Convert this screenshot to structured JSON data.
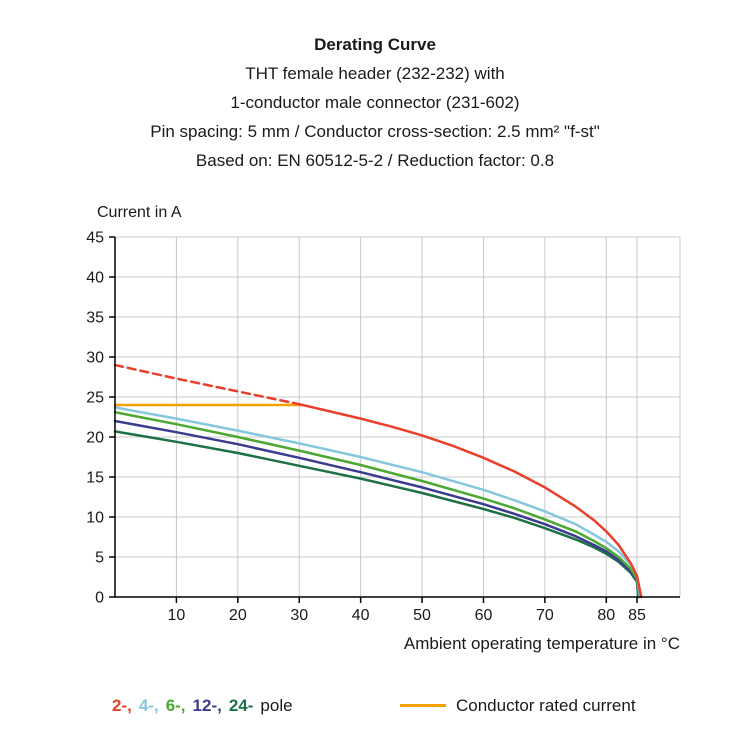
{
  "header": {
    "title": "Derating Curve",
    "lines": [
      "THT female header (232-232) with",
      "1-conductor male connector (231-602)",
      "Pin spacing: 5 mm / Conductor cross-section: 2.5 mm² \"f-st\"",
      "Based on: EN 60512-5-2 / Reduction factor: 0.8"
    ]
  },
  "legend": {
    "pole_items": [
      {
        "label": "2-,",
        "color": "#e8402c"
      },
      {
        "label": "4-,",
        "color": "#85c7dc"
      },
      {
        "label": "6-,",
        "color": "#4ca832"
      },
      {
        "label": "12-,",
        "color": "#3b3b8f"
      },
      {
        "label": "24-",
        "color": "#1e7145"
      }
    ],
    "pole_suffix": "pole",
    "rated_label": "Conductor rated current",
    "rated_color": "#f7a200"
  },
  "chart_data": {
    "type": "line",
    "title": "Derating Curve",
    "xlabel": "Ambient operating temperature in °C",
    "ylabel": "Current in A",
    "xlim": [
      0,
      92
    ],
    "ylim": [
      0,
      45
    ],
    "xticks": [
      10,
      20,
      30,
      40,
      50,
      60,
      70,
      80,
      85
    ],
    "yticks": [
      0,
      5,
      10,
      15,
      20,
      25,
      30,
      35,
      40,
      45
    ],
    "grid": true,
    "grid_color": "#c8c8c8",
    "axis_color": "#000000",
    "series": [
      {
        "name": "24-pole",
        "color": "#1e7145",
        "dash": null,
        "width": 2.5,
        "points": [
          [
            0,
            20.7
          ],
          [
            10,
            19.4
          ],
          [
            20,
            18.0
          ],
          [
            30,
            16.4
          ],
          [
            40,
            14.8
          ],
          [
            50,
            13.0
          ],
          [
            60,
            11.0
          ],
          [
            65,
            9.9
          ],
          [
            70,
            8.6
          ],
          [
            75,
            7.2
          ],
          [
            78,
            6.2
          ],
          [
            80,
            5.4
          ],
          [
            82,
            4.4
          ],
          [
            84,
            3.0
          ],
          [
            85,
            1.9
          ],
          [
            85.2,
            0
          ]
        ]
      },
      {
        "name": "12-pole",
        "color": "#3b3b8f",
        "dash": null,
        "width": 2.5,
        "points": [
          [
            0,
            22.0
          ],
          [
            10,
            20.6
          ],
          [
            20,
            19.1
          ],
          [
            30,
            17.4
          ],
          [
            40,
            15.6
          ],
          [
            50,
            13.7
          ],
          [
            60,
            11.6
          ],
          [
            65,
            10.4
          ],
          [
            70,
            9.1
          ],
          [
            75,
            7.6
          ],
          [
            78,
            6.5
          ],
          [
            80,
            5.7
          ],
          [
            82,
            4.6
          ],
          [
            84,
            3.2
          ],
          [
            85,
            2.0
          ],
          [
            85.3,
            0
          ]
        ]
      },
      {
        "name": "6-pole",
        "color": "#4ca832",
        "dash": null,
        "width": 2.5,
        "points": [
          [
            0,
            23.1
          ],
          [
            10,
            21.6
          ],
          [
            20,
            20.0
          ],
          [
            30,
            18.3
          ],
          [
            40,
            16.5
          ],
          [
            50,
            14.5
          ],
          [
            60,
            12.3
          ],
          [
            65,
            11.1
          ],
          [
            70,
            9.7
          ],
          [
            75,
            8.2
          ],
          [
            78,
            7.0
          ],
          [
            80,
            6.1
          ],
          [
            82,
            5.0
          ],
          [
            84,
            3.5
          ],
          [
            85,
            2.2
          ],
          [
            85.4,
            0
          ]
        ]
      },
      {
        "name": "4-pole",
        "color": "#85c7dc",
        "dash": null,
        "width": 2.5,
        "points": [
          [
            0,
            23.7
          ],
          [
            10,
            22.3
          ],
          [
            20,
            20.8
          ],
          [
            30,
            19.2
          ],
          [
            40,
            17.5
          ],
          [
            50,
            15.6
          ],
          [
            60,
            13.4
          ],
          [
            65,
            12.1
          ],
          [
            70,
            10.7
          ],
          [
            75,
            9.1
          ],
          [
            78,
            7.8
          ],
          [
            80,
            6.9
          ],
          [
            82,
            5.7
          ],
          [
            84,
            4.0
          ],
          [
            85,
            2.6
          ],
          [
            85.5,
            0
          ]
        ]
      },
      {
        "name": "conductor-rated-current",
        "color": "#f7a200",
        "dash": null,
        "width": 2.5,
        "points": [
          [
            0,
            24
          ],
          [
            30.5,
            24
          ]
        ]
      },
      {
        "name": "2-pole-dashed",
        "color": "#e8402c",
        "dash": "8 5",
        "width": 2.5,
        "points": [
          [
            0,
            29.0
          ],
          [
            10,
            27.3
          ],
          [
            20,
            25.7
          ],
          [
            30,
            24.1
          ]
        ]
      },
      {
        "name": "2-pole",
        "color": "#e8402c",
        "dash": null,
        "width": 2.5,
        "points": [
          [
            30,
            24.1
          ],
          [
            35,
            23.2
          ],
          [
            40,
            22.3
          ],
          [
            45,
            21.3
          ],
          [
            50,
            20.2
          ],
          [
            55,
            18.9
          ],
          [
            60,
            17.4
          ],
          [
            65,
            15.7
          ],
          [
            70,
            13.7
          ],
          [
            75,
            11.3
          ],
          [
            78,
            9.6
          ],
          [
            80,
            8.2
          ],
          [
            82,
            6.5
          ],
          [
            84,
            4.2
          ],
          [
            85,
            2.6
          ],
          [
            85.7,
            0
          ]
        ]
      }
    ]
  }
}
